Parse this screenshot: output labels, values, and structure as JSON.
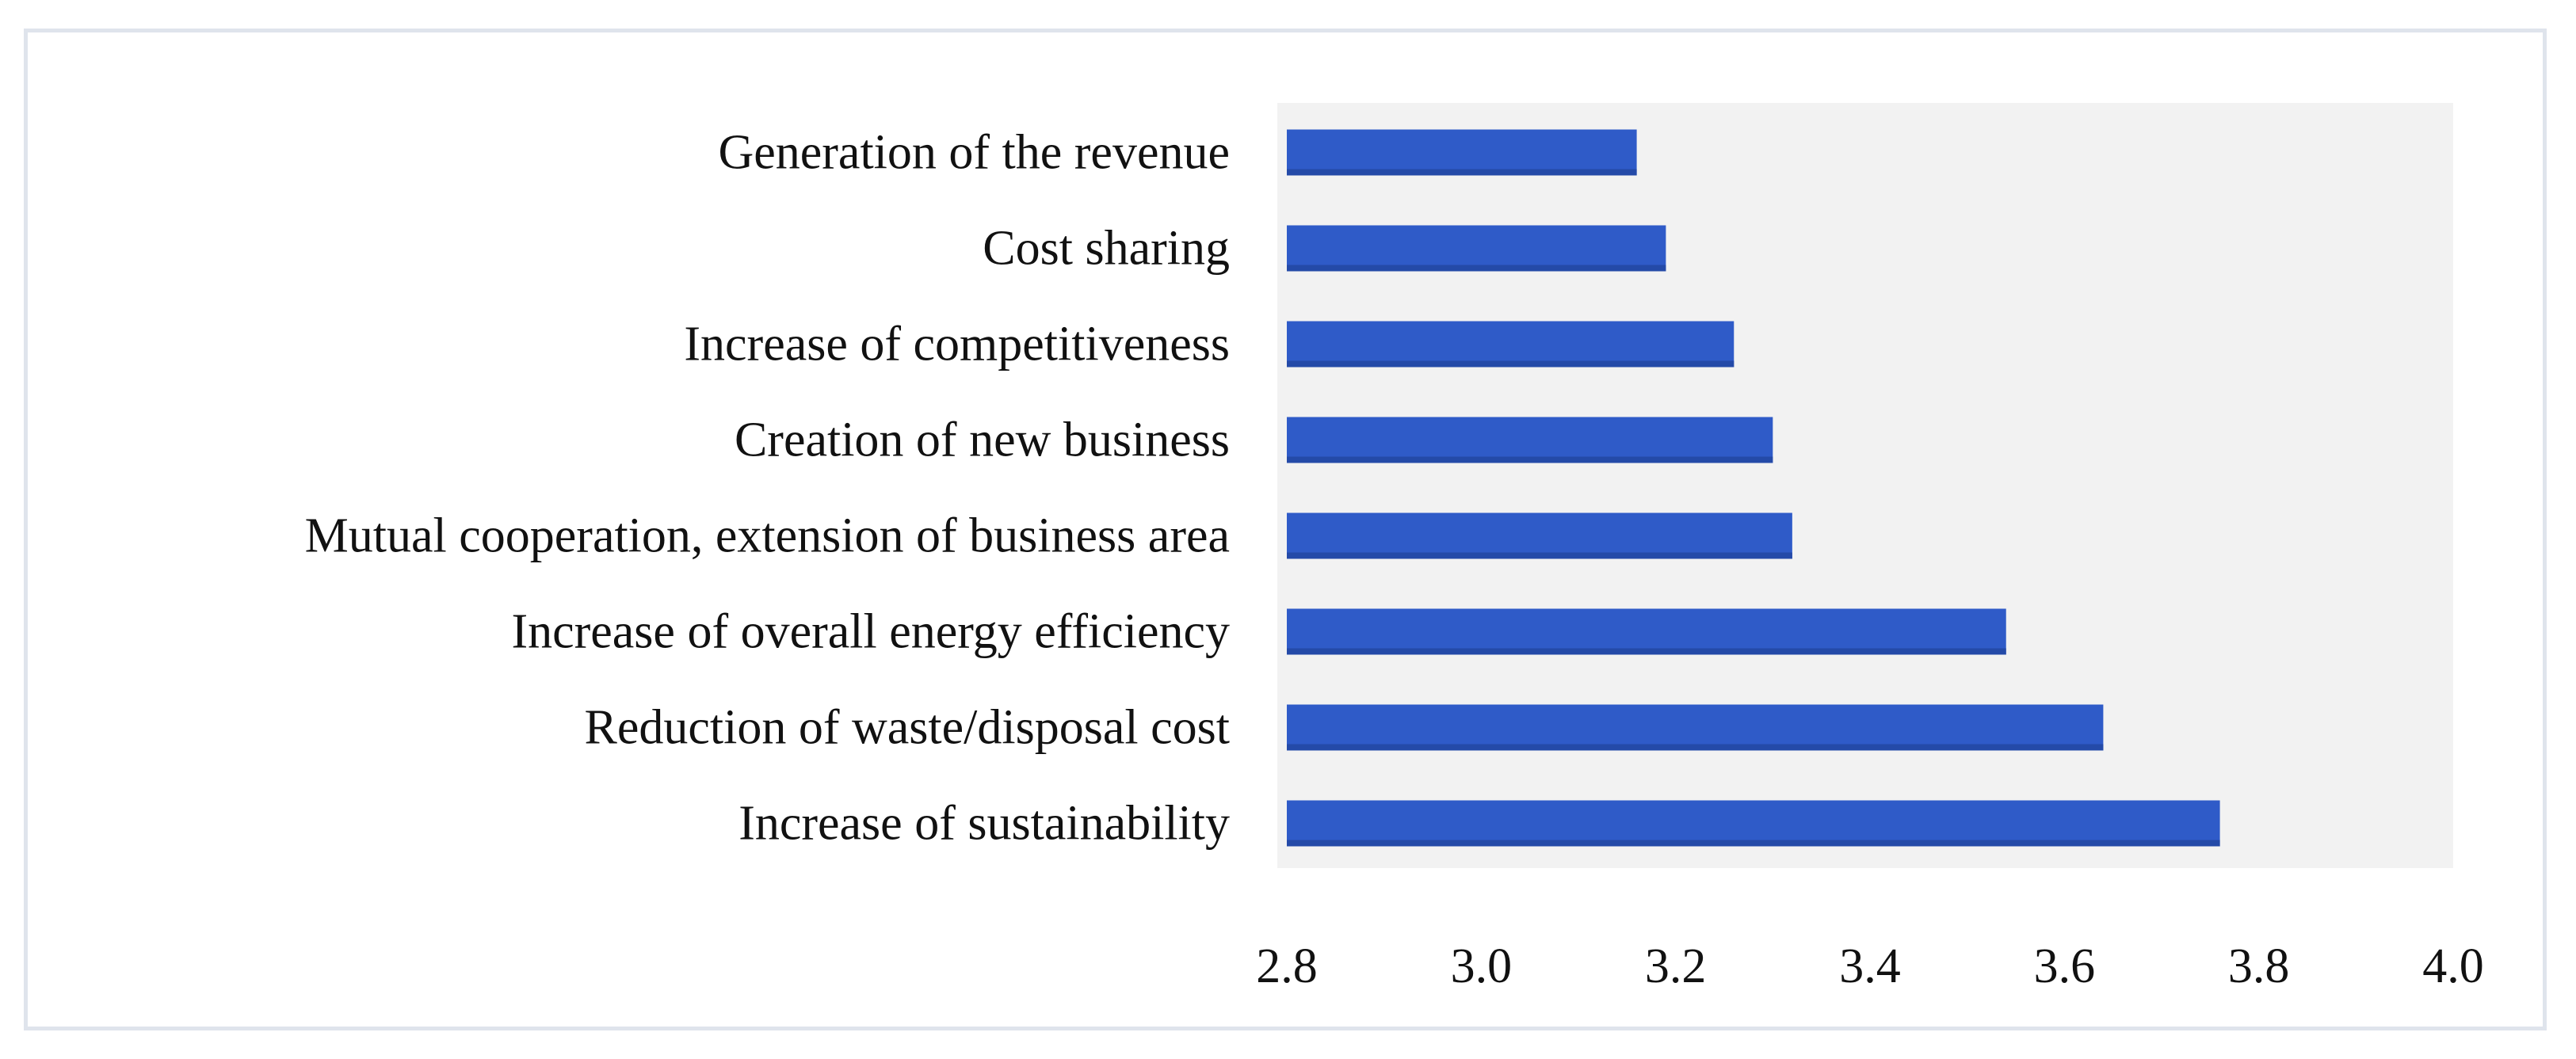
{
  "colors": {
    "bar": "#2f5bc8",
    "bar_dark": "#244aa8",
    "plot_bg": "#f2f2f2",
    "frame": "#dfe4ec"
  },
  "chart_data": {
    "type": "bar",
    "orientation": "horizontal",
    "title": "",
    "xlabel": "",
    "ylabel": "",
    "categories": [
      "Generation of the revenue",
      "Cost sharing",
      "Increase of competitiveness",
      "Creation of new business",
      "Mutual cooperation, extension of business area",
      "Increase of overall energy efficiency",
      "Reduction of waste/disposal cost",
      "Increase of sustainability"
    ],
    "values": [
      3.16,
      3.19,
      3.26,
      3.3,
      3.32,
      3.54,
      3.64,
      3.76
    ],
    "xlim": [
      2.8,
      4.0
    ],
    "xticks": [
      "2.8",
      "3.0",
      "3.2",
      "3.4",
      "3.6",
      "3.8",
      "4.0"
    ],
    "grid": false,
    "legend": "none"
  }
}
